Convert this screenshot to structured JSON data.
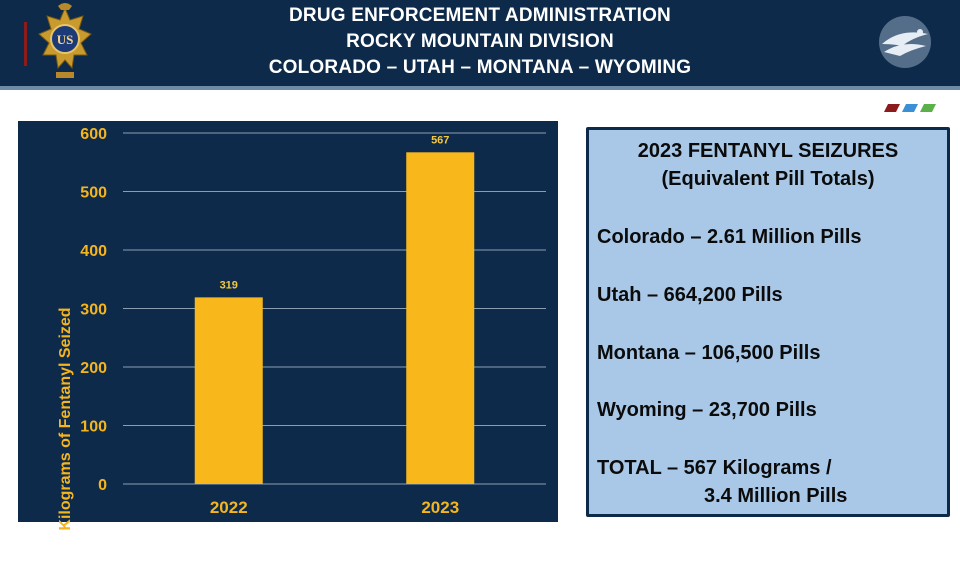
{
  "header": {
    "line1": "DRUG ENFORCEMENT ADMINISTRATION",
    "line2": "ROCKY MOUNTAIN DIVISION",
    "line3": "COLORADO – UTAH – MONTANA – WYOMING",
    "badge_text": "US"
  },
  "colors": {
    "navy": "#0d2a4a",
    "bar": "#f8b81c",
    "axis_text": "#f5b51e",
    "info_bg": "#a9c8e8",
    "swatches": [
      "#8c1b1b",
      "#3a8fd6",
      "#5bb04a"
    ]
  },
  "chart_data": {
    "type": "bar",
    "categories": [
      "2022",
      "2023"
    ],
    "values": [
      319,
      567
    ],
    "data_labels": [
      "319",
      "567"
    ],
    "ylabel": "Kilograms of Fentanyl Seized",
    "ylim": [
      0,
      600
    ],
    "yticks": [
      0,
      100,
      200,
      300,
      400,
      500,
      600
    ],
    "grid": true
  },
  "info_box": {
    "title": "2023 FENTANYL SEIZURES",
    "subtitle": "(Equivalent Pill Totals)",
    "items": [
      "Colorado – 2.61 Million Pills",
      "Utah – 664,200 Pills",
      "Montana – 106,500 Pills",
      "Wyoming – 23,700 Pills"
    ],
    "total_line1": "TOTAL – 567 Kilograms /",
    "total_line2": "3.4 Million Pills"
  }
}
